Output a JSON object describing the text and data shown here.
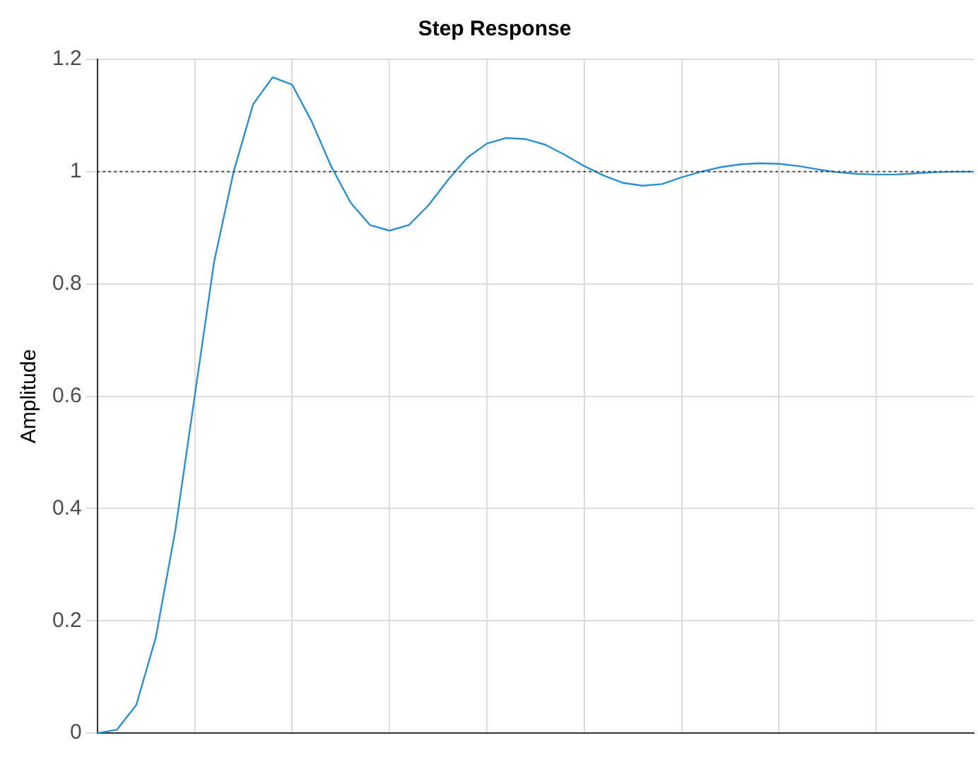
{
  "chart_data": {
    "type": "line",
    "title": "Step Response",
    "ylabel": "Amplitude",
    "categories": [
      null,
      null,
      null,
      null,
      null,
      null,
      null,
      null,
      null,
      null,
      null,
      null,
      null,
      null,
      null,
      null,
      null,
      null,
      null,
      null,
      null,
      null,
      null,
      null,
      null,
      null,
      null,
      null,
      null,
      null,
      null,
      null,
      null,
      null,
      null,
      null,
      null,
      null,
      null,
      null,
      null,
      null,
      null,
      null,
      null,
      null
    ],
    "series": [
      {
        "color": "#2b8fd0",
        "values": [
          0,
          0.006,
          0.05,
          0.17,
          0.36,
          0.6,
          0.84,
          1.0,
          1.12,
          1.168,
          1.155,
          1.09,
          1.01,
          0.945,
          0.905,
          0.895,
          0.905,
          0.94,
          0.985,
          1.025,
          1.05,
          1.06,
          1.058,
          1.048,
          1.03,
          1.01,
          0.993,
          0.98,
          0.975,
          0.978,
          0.99,
          1.0,
          1.008,
          1.013,
          1.015,
          1.014,
          1.01,
          1.004,
          0.999,
          0.996,
          0.995,
          0.995,
          0.997,
          0.999,
          1.0,
          1.0
        ]
      }
    ],
    "ylim": [
      0,
      1.2
    ],
    "yticks": [
      0,
      0.2,
      0.4,
      0.6,
      0.8,
      1,
      1.2
    ],
    "ref_lines": [
      {
        "axis": "y",
        "value": 1,
        "color": "#333333",
        "line_style": "dotted"
      }
    ],
    "grid": true,
    "legend": false,
    "marker": "none",
    "line_style": "solid"
  }
}
